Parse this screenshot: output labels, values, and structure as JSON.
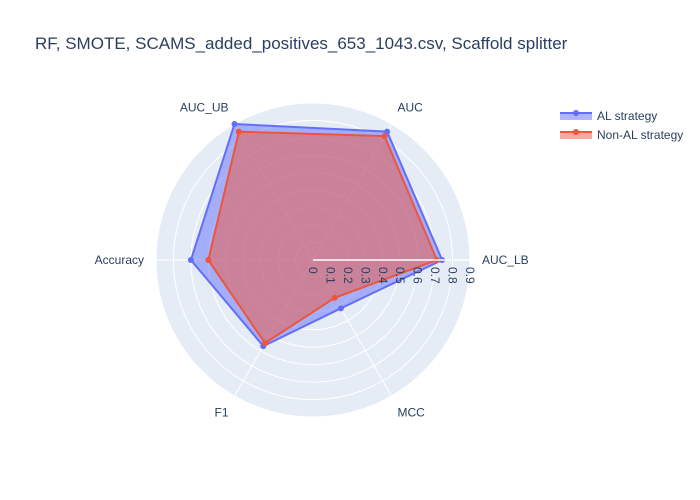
{
  "chart_data": {
    "type": "radar",
    "title": "RF, SMOTE, SCAMS_added_positives_653_1043.csv, Scaffold splitter",
    "categories": [
      "AUC_LB",
      "AUC",
      "AUC_UB",
      "Accuracy",
      "F1",
      "MCC"
    ],
    "radial_range": [
      0,
      0.9
    ],
    "radial_ticks": [
      "0",
      "0.1",
      "0.2",
      "0.3",
      "0.4",
      "0.5",
      "0.6",
      "0.7",
      "0.8",
      "0.9"
    ],
    "grid": true,
    "legend_position": "top-right",
    "series": [
      {
        "name": "AL strategy",
        "values": [
          0.74,
          0.85,
          0.9,
          0.7,
          0.57,
          0.32
        ],
        "color": "#636efa"
      },
      {
        "name": "Non-AL strategy",
        "values": [
          0.71,
          0.82,
          0.85,
          0.6,
          0.55,
          0.25
        ],
        "color": "#ef553b"
      }
    ]
  }
}
